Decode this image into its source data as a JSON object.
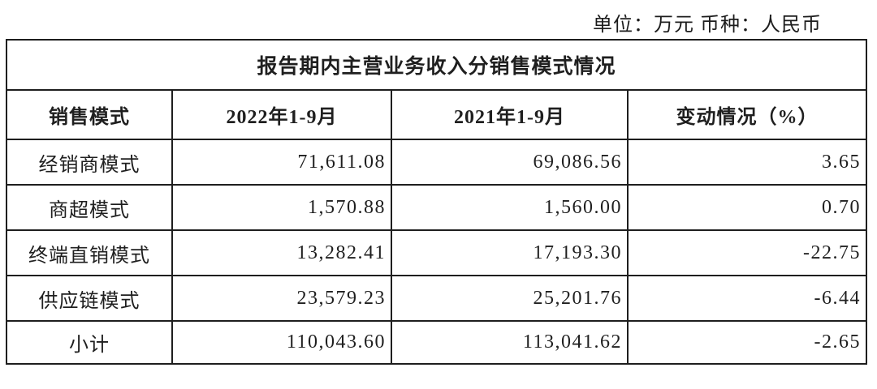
{
  "meta": {
    "unit_currency_note": "单位：万元 币种：人民币"
  },
  "table": {
    "title": "报告期内主营业务收入分销售模式情况",
    "columns": {
      "mode": "销售模式",
      "period_2022": "2022年1-9月",
      "period_2021": "2021年1-9月",
      "change": "变动情况（%）"
    },
    "rows": [
      {
        "mode": "经销商模式",
        "y2022": "71,611.08",
        "y2021": "69,086.56",
        "change": "3.65"
      },
      {
        "mode": "商超模式",
        "y2022": "1,570.88",
        "y2021": "1,560.00",
        "change": "0.70"
      },
      {
        "mode": "终端直销模式",
        "y2022": "13,282.41",
        "y2021": "17,193.30",
        "change": "-22.75"
      },
      {
        "mode": "供应链模式",
        "y2022": "23,579.23",
        "y2021": "25,201.76",
        "change": "-6.44"
      },
      {
        "mode": "小计",
        "y2022": "110,043.60",
        "y2021": "113,041.62",
        "change": "-2.65"
      }
    ]
  },
  "colors": {
    "border": "#1e1e1e",
    "text": "#1f1f1f",
    "background": "#ffffff"
  }
}
